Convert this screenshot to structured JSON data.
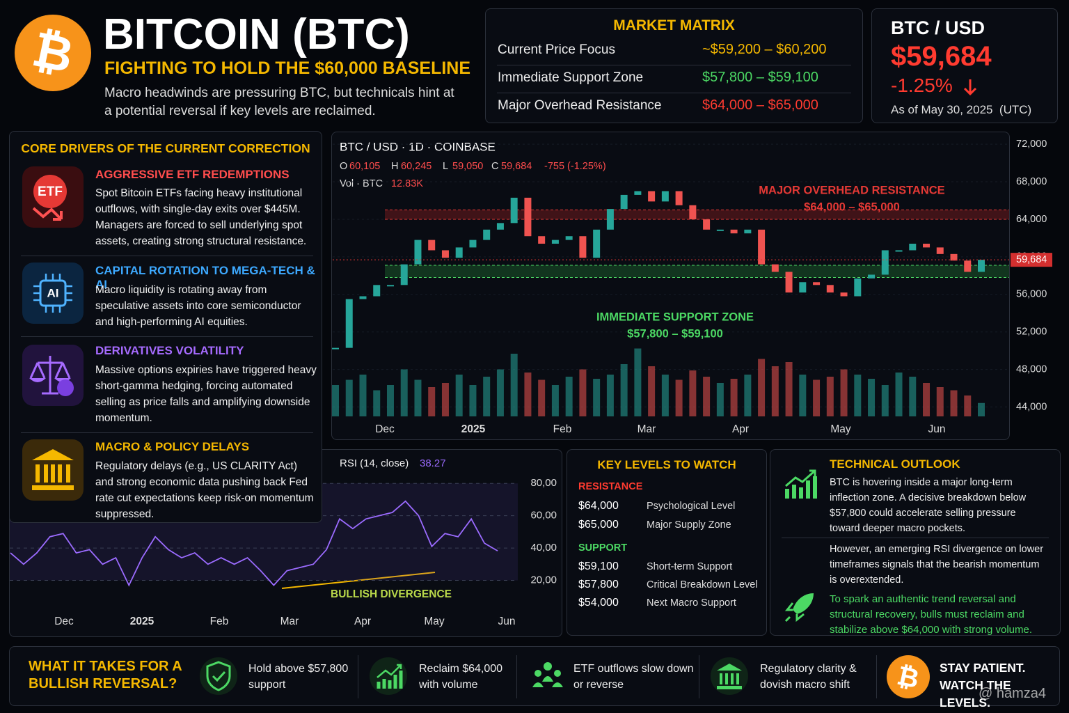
{
  "header": {
    "title": "BITCOIN (BTC)",
    "subtitle": "FIGHTING TO HOLD THE $60,000 BASELINE",
    "description": "Macro headwinds are pressuring BTC, but technicals hint at a potential reversal if key levels are reclaimed."
  },
  "market_matrix": {
    "title": "MARKET MATRIX",
    "rows": [
      {
        "label": "Current Price Focus",
        "value": "~$59,200 – $60,200",
        "color": "#f5b800"
      },
      {
        "label": "Immediate Support Zone",
        "value": "$57,800 – $59,100",
        "color": "#4cd964"
      },
      {
        "label": "Major Overhead Resistance",
        "value": "$64,000 – $65,000",
        "color": "#ff3b30"
      }
    ]
  },
  "ticker": {
    "pair": "BTC / USD",
    "price": "$59,684",
    "change": "-1.25%",
    "as_of": "As of May 30, 2025  (UTC)"
  },
  "drivers": {
    "title": "CORE DRIVERS OF THE CURRENT CORRECTION",
    "items": [
      {
        "icon": "ETF",
        "title": "AGGRESSIVE ETF REDEMPTIONS",
        "color": "#ff4d4d",
        "text": "Spot Bitcoin ETFs facing heavy institutional outflows, with single-day exits over $445M. Managers are forced to sell underlying spot assets, creating strong structural resistance."
      },
      {
        "icon": "AI",
        "title": "CAPITAL ROTATION TO MEGA-TECH & AI",
        "color": "#3da9ff",
        "text": "Macro liquidity is rotating away from speculative assets into core semiconductor and high-performing AI equities."
      },
      {
        "title": "DERIVATIVES VOLATILITY",
        "color": "#a66bff",
        "text": "Massive options expiries have triggered heavy short-gamma hedging, forcing automated selling as price falls and amplifying downside momentum."
      },
      {
        "title": "MACRO & POLICY DELAYS",
        "color": "#f5b800",
        "text": "Regulatory delays (e.g., US CLARITY Act) and strong economic data pushing back Fed rate cut expectations keep risk-on momentum suppressed."
      }
    ]
  },
  "price_chart": {
    "type": "candlestick",
    "title": "BTC / USD · 1D · COINBASE",
    "ohlc": [
      {
        "key": "O",
        "value": "60,105"
      },
      {
        "key": "H",
        "value": "60,245"
      },
      {
        "key": "L",
        "value": "59,050"
      },
      {
        "key": "C",
        "value": "59,684"
      }
    ],
    "change": "-755 (-1.25%)",
    "volume_label": "Vol · BTC",
    "volume": "12.83K",
    "categories": [
      "Dec",
      "2025",
      "Feb",
      "Mar",
      "Apr",
      "May",
      "Jun"
    ],
    "closes": [
      50300,
      55500,
      55800,
      57000,
      57000,
      59200,
      61800,
      60700,
      59900,
      61000,
      61800,
      62900,
      63600,
      66300,
      62200,
      61400,
      61800,
      62200,
      59900,
      62900,
      65100,
      66600,
      67000,
      65900,
      67000,
      65500,
      64000,
      62900,
      62900,
      62500,
      62900,
      59200,
      58400,
      56200,
      57300,
      57000,
      56200,
      55800,
      57700,
      58100,
      60700,
      60700,
      61400,
      61000,
      60300,
      59600,
      58400,
      59684
    ],
    "volumes": [
      30,
      35,
      40,
      25,
      30,
      45,
      35,
      28,
      32,
      40,
      30,
      38,
      45,
      60,
      42,
      35,
      30,
      38,
      45,
      36,
      40,
      50,
      65,
      48,
      40,
      35,
      44,
      38,
      32,
      36,
      40,
      55,
      48,
      52,
      40,
      35,
      38,
      45,
      40,
      36,
      30,
      42,
      38,
      32,
      28,
      25,
      20,
      12.83
    ],
    "ylim": [
      43000,
      72900
    ],
    "yticks": [
      {
        "value": 44000,
        "label": "44,000"
      },
      {
        "value": 48000,
        "label": "48,000"
      },
      {
        "value": 52000,
        "label": "52,000"
      },
      {
        "value": 56000,
        "label": "56,000"
      },
      {
        "value": 60000,
        "label": "60,000"
      },
      {
        "value": 64000,
        "label": "64,000"
      },
      {
        "value": 68000,
        "label": "68,000"
      },
      {
        "value": 72000,
        "label": "72,000"
      }
    ],
    "last_price": {
      "value": 59684,
      "label": "59,684"
    },
    "resistance": {
      "label": "MAJOR OVERHEAD RESISTANCE",
      "range_label": "$64,000 – $65,000",
      "range": [
        64000,
        65000
      ]
    },
    "support": {
      "label": "IMMEDIATE SUPPORT ZONE",
      "range_label": "$57,800 – $59,100",
      "range": [
        57800,
        59100
      ]
    },
    "up_color": "#26a69a",
    "down_color": "#ef5350"
  },
  "rsi_chart": {
    "type": "line",
    "title": "RSI (14, close)",
    "color": "#9b6bff",
    "categories": [
      "Dec",
      "2025",
      "Feb",
      "Mar",
      "Apr",
      "May",
      "Jun"
    ],
    "values": [
      37,
      30,
      37,
      47,
      49,
      37,
      39,
      30,
      34,
      17,
      34,
      47,
      39,
      34,
      37,
      30,
      34,
      30,
      34,
      26,
      17,
      26,
      28,
      30,
      39,
      58,
      52,
      58,
      60,
      62,
      69,
      60,
      41,
      49,
      47,
      58,
      43,
      38.27
    ],
    "ylim": [
      0,
      90
    ],
    "yticks": [
      {
        "value": 20,
        "label": "20,00"
      },
      {
        "value": 40,
        "label": "40,00"
      },
      {
        "value": 60,
        "label": "60,00"
      },
      {
        "value": 80,
        "label": "80,00"
      }
    ],
    "annotation": "BULLISH DIVERGENCE"
  },
  "key_levels": {
    "title": "KEY LEVELS TO WATCH",
    "resistance_title": "RESISTANCE",
    "resistance": [
      {
        "price": "$64,000",
        "note": "Psychological Level"
      },
      {
        "price": "$65,000",
        "note": "Major Supply Zone"
      }
    ],
    "support_title": "SUPPORT",
    "support": [
      {
        "price": "$59,100",
        "note": "Short-term Support"
      },
      {
        "price": "$57,800",
        "note": "Critical Breakdown Level"
      },
      {
        "price": "$54,000",
        "note": "Next Macro Support"
      }
    ]
  },
  "outlook": {
    "title": "TECHNICAL OUTLOOK",
    "paragraphs": [
      "BTC is hovering inside a major long-term inflection zone. A decisive breakdown below $57,800 could accelerate selling pressure toward deeper macro pockets.",
      "However, an emerging RSI divergence on lower timeframes signals that the bearish momentum is overextended.",
      "To spark an authentic trend reversal and structural recovery, bulls must reclaim and stabilize above $64,000 with strong volume."
    ]
  },
  "footer": {
    "title": "WHAT IT TAKES FOR A BULLISH REVERSAL?",
    "items": [
      "Hold above $57,800 support",
      "Reclaim $64,000 with volume",
      "ETF outflows slow down or reverse",
      "Regulatory clarity & dovish macro shift"
    ],
    "closing": "STAY PATIENT. WATCH THE LEVELS.",
    "watermark": "@ hamza4"
  }
}
